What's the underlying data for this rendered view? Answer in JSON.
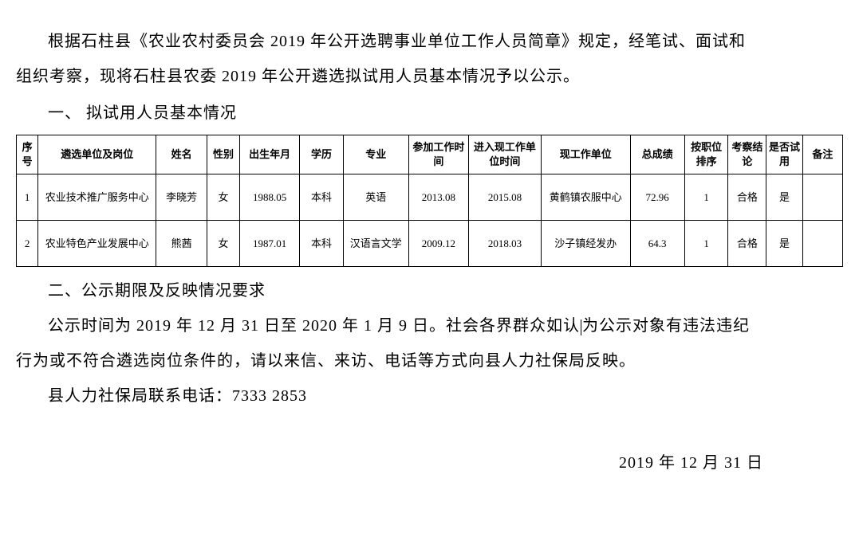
{
  "intro": {
    "paragraph1_part1": "根据石柱县《农业农村委员会 2019 年公开选聘事业单位工作人员简章》规定，经笔试、面试和",
    "paragraph1_part2": "组织考察，现将石柱县农委 2019 年公开遴选拟试用人员基本情况予以公示。"
  },
  "section1": {
    "title": "一、 拟试用人员基本情况"
  },
  "table": {
    "headers": {
      "seq": "序号",
      "unit": "遴选单位及岗位",
      "name": "姓名",
      "gender": "性别",
      "birth": "出生年月",
      "edu": "学历",
      "major": "专业",
      "worktime": "参加工作时间",
      "currenttime": "进入现工作单位时间",
      "currentunit": "现工作单位",
      "score": "总成绩",
      "rank": "按职位排序",
      "exam": "考察结论",
      "trial": "是否试用",
      "remark": "备注"
    },
    "rows": [
      {
        "seq": "1",
        "unit": "农业技术推广服务中心",
        "name": "李晓芳",
        "gender": "女",
        "birth": "1988.05",
        "edu": "本科",
        "major": "英语",
        "worktime": "2013.08",
        "currenttime": "2015.08",
        "currentunit": "黄鹤镇农服中心",
        "score": "72.96",
        "rank": "1",
        "exam": "合格",
        "trial": "是",
        "remark": ""
      },
      {
        "seq": "2",
        "unit": "农业特色产业发展中心",
        "name": "熊茜",
        "gender": "女",
        "birth": "1987.01",
        "edu": "本科",
        "major": "汉语言文学",
        "worktime": "2009.12",
        "currenttime": "2018.03",
        "currentunit": "沙子镇经发办",
        "score": "64.3",
        "rank": "1",
        "exam": "合格",
        "trial": "是",
        "remark": ""
      }
    ]
  },
  "section2": {
    "title": "二、公示期限及反映情况要求",
    "paragraph1_part1": "公示时间为 2019 年 12 月 31 日至 2020 年 1 月 9 日。社会各界群众如认",
    "paragraph1_part2": "为公示对象有违法违纪",
    "paragraph1_part3": "行为或不符合遴选岗位条件的，请以来信、来访、电话等方式向县人力社保局反映。",
    "paragraph2": "县人力社保局联系电话：7333 2853"
  },
  "date": "2019 年 12 月 31 日",
  "styling": {
    "background_color": "#ffffff",
    "text_color": "#000000",
    "border_color": "#000000",
    "body_fontsize": 20,
    "table_fontsize": 13,
    "line_height": 2.2
  }
}
